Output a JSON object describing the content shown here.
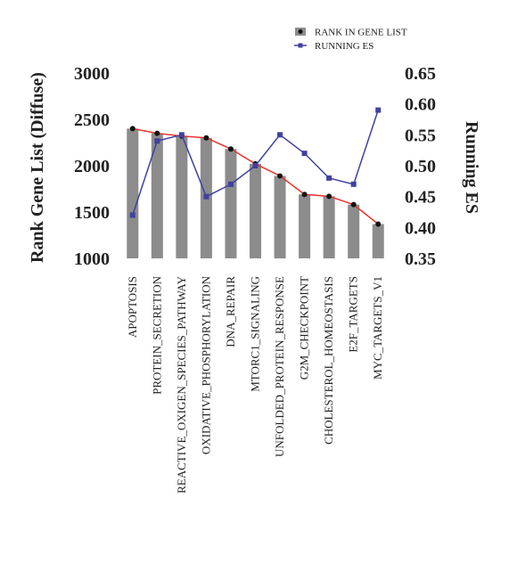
{
  "chart_data": {
    "type": "bar",
    "title": "",
    "categories": [
      "APOPTOSIS",
      "PROTEIN_SECRETION",
      "REACTIVE_OXIGEN_SPECIES_PATHWAY",
      "OXIDATIVE_PHOSPHORYLATION",
      "DNA_REPAIR",
      "MTORC1_SIGNALING",
      "UNFOLDED_PROTEIN_RESPONSE",
      "G2M_CHECKPOINT",
      "CHOLESTEROL_HOMEOSTASIS",
      "E2F_TARGETS",
      "MYC_TARGETS_V1"
    ],
    "series": [
      {
        "name": "RANK IN GENE LIST",
        "type": "bar",
        "axis": "left",
        "values": [
          2400,
          2350,
          2320,
          2300,
          2180,
          2020,
          1890,
          1690,
          1670,
          1580,
          1370
        ],
        "color": "#8c8c8c",
        "marker_color": "#111111",
        "trend_line_color": "#e8352f"
      },
      {
        "name": "RUNNING ES",
        "type": "line",
        "axis": "right",
        "values": [
          0.42,
          0.54,
          0.55,
          0.45,
          0.47,
          0.5,
          0.55,
          0.52,
          0.48,
          0.47,
          0.59
        ],
        "color": "#4040a0"
      }
    ],
    "ylabel": "Rank Gene List (Diffuse)",
    "ylim": [
      1000,
      3000
    ],
    "yticks": [
      1000,
      1500,
      2000,
      2500,
      3000
    ],
    "y2label": "Running ES",
    "y2lim": [
      0.35,
      0.65
    ],
    "y2ticks": [
      "0.35",
      "0.40",
      "0.45",
      "0.50",
      "0.55",
      "0.60",
      "0.65"
    ],
    "legend": {
      "placement": "top-right",
      "entries": [
        "RANK IN GENE LIST",
        "RUNNING ES"
      ]
    },
    "grid": false
  }
}
